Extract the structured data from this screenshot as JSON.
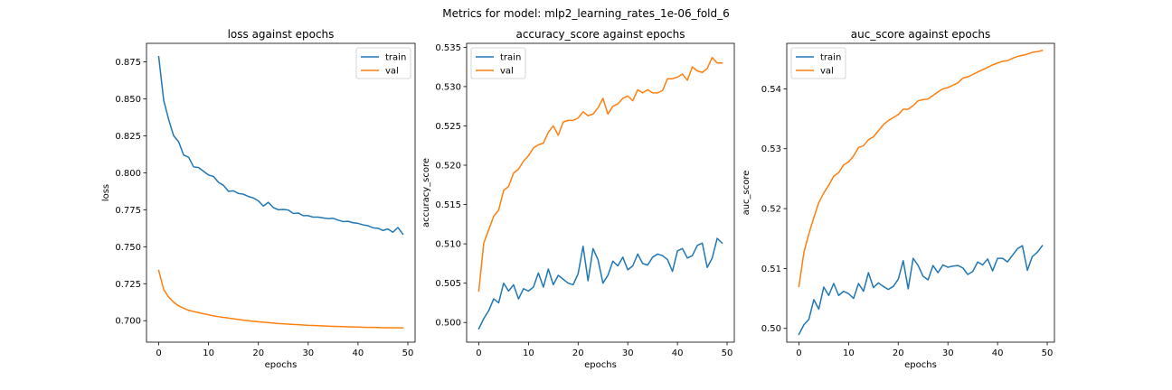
{
  "figure": {
    "suptitle": "Metrics for model: mlp2_learning_rates_1e-06_fold_6"
  },
  "colors": {
    "train": "#1f77b4",
    "val": "#ff7f0e",
    "axes": "#000000",
    "background": "#ffffff"
  },
  "chart_data": [
    {
      "type": "line",
      "title": "loss against epochs",
      "xlabel": "epochs",
      "ylabel": "loss",
      "xlim": [
        -2.45,
        51.45
      ],
      "ylim": [
        0.6855,
        0.8875
      ],
      "xticks": [
        0,
        10,
        20,
        30,
        40,
        50
      ],
      "xtick_labels": [
        "0",
        "10",
        "20",
        "30",
        "40",
        "50"
      ],
      "yticks": [
        0.7,
        0.725,
        0.75,
        0.775,
        0.8,
        0.825,
        0.85,
        0.875
      ],
      "ytick_labels": [
        "0.700",
        "0.725",
        "0.750",
        "0.775",
        "0.800",
        "0.825",
        "0.850",
        "0.875"
      ],
      "legend": {
        "position": "top-right",
        "entries": [
          "train",
          "val"
        ]
      },
      "grid": false,
      "x": [
        0,
        1,
        2,
        3,
        4,
        5,
        6,
        7,
        8,
        9,
        10,
        11,
        12,
        13,
        14,
        15,
        16,
        17,
        18,
        19,
        20,
        21,
        22,
        23,
        24,
        25,
        26,
        27,
        28,
        29,
        30,
        31,
        32,
        33,
        34,
        35,
        36,
        37,
        38,
        39,
        40,
        41,
        42,
        43,
        44,
        45,
        46,
        47,
        48,
        49
      ],
      "series": [
        {
          "name": "train",
          "color": "#1f77b4",
          "values": [
            0.8785,
            0.849,
            0.836,
            0.825,
            0.821,
            0.812,
            0.8105,
            0.804,
            0.8035,
            0.801,
            0.7985,
            0.7975,
            0.7935,
            0.7915,
            0.7875,
            0.7878,
            0.786,
            0.7855,
            0.784,
            0.783,
            0.781,
            0.7775,
            0.78,
            0.7765,
            0.775,
            0.7752,
            0.7748,
            0.7725,
            0.7728,
            0.771,
            0.771,
            0.77,
            0.77,
            0.7695,
            0.769,
            0.7692,
            0.768,
            0.767,
            0.7672,
            0.7662,
            0.7658,
            0.7648,
            0.7642,
            0.7628,
            0.7625,
            0.761,
            0.762,
            0.7598,
            0.763,
            0.7585
          ]
        },
        {
          "name": "val",
          "color": "#ff7f0e",
          "values": [
            0.734,
            0.721,
            0.716,
            0.7125,
            0.71,
            0.7085,
            0.707,
            0.7062,
            0.7055,
            0.7047,
            0.704,
            0.7033,
            0.7027,
            0.7022,
            0.7018,
            0.7013,
            0.7008,
            0.7004,
            0.7,
            0.6996,
            0.6993,
            0.699,
            0.6987,
            0.6984,
            0.6981,
            0.6979,
            0.6977,
            0.6975,
            0.6973,
            0.6971,
            0.6969,
            0.6968,
            0.6966,
            0.6965,
            0.6963,
            0.6962,
            0.6961,
            0.696,
            0.6959,
            0.6958,
            0.6957,
            0.6956,
            0.6955,
            0.6955,
            0.6954,
            0.6953,
            0.6953,
            0.6952,
            0.6952,
            0.6951
          ]
        }
      ]
    },
    {
      "type": "line",
      "title": "accuracy_score against epochs",
      "xlabel": "epochs",
      "ylabel": "accuracy_score",
      "xlim": [
        -2.45,
        51.45
      ],
      "ylim": [
        0.4975,
        0.5355
      ],
      "xticks": [
        0,
        10,
        20,
        30,
        40,
        50
      ],
      "xtick_labels": [
        "0",
        "10",
        "20",
        "30",
        "40",
        "50"
      ],
      "yticks": [
        0.5,
        0.505,
        0.51,
        0.515,
        0.52,
        0.525,
        0.53,
        0.535
      ],
      "ytick_labels": [
        "0.500",
        "0.505",
        "0.510",
        "0.515",
        "0.520",
        "0.525",
        "0.530",
        "0.535"
      ],
      "legend": {
        "position": "top-left",
        "entries": [
          "train",
          "val"
        ]
      },
      "grid": false,
      "x": [
        0,
        1,
        2,
        3,
        4,
        5,
        6,
        7,
        8,
        9,
        10,
        11,
        12,
        13,
        14,
        15,
        16,
        17,
        18,
        19,
        20,
        21,
        22,
        23,
        24,
        25,
        26,
        27,
        28,
        29,
        30,
        31,
        32,
        33,
        34,
        35,
        36,
        37,
        38,
        39,
        40,
        41,
        42,
        43,
        44,
        45,
        46,
        47,
        48,
        49
      ],
      "series": [
        {
          "name": "train",
          "color": "#1f77b4",
          "values": [
            0.4992,
            0.5005,
            0.5015,
            0.503,
            0.5025,
            0.505,
            0.504,
            0.5048,
            0.503,
            0.5043,
            0.504,
            0.5045,
            0.5063,
            0.5045,
            0.5068,
            0.5048,
            0.506,
            0.5055,
            0.505,
            0.5048,
            0.5062,
            0.5097,
            0.5053,
            0.5094,
            0.508,
            0.505,
            0.506,
            0.5078,
            0.5072,
            0.5083,
            0.5067,
            0.5072,
            0.5087,
            0.5075,
            0.5073,
            0.5083,
            0.5087,
            0.5085,
            0.508,
            0.5065,
            0.5091,
            0.5094,
            0.5082,
            0.5085,
            0.5098,
            0.5101,
            0.507,
            0.5082,
            0.5107,
            0.5101
          ]
        },
        {
          "name": "val",
          "color": "#ff7f0e",
          "values": [
            0.504,
            0.5101,
            0.5118,
            0.5135,
            0.5143,
            0.5168,
            0.5173,
            0.519,
            0.5195,
            0.5205,
            0.5212,
            0.5222,
            0.5226,
            0.5228,
            0.5242,
            0.525,
            0.5238,
            0.5255,
            0.5257,
            0.5257,
            0.526,
            0.5268,
            0.5263,
            0.5265,
            0.5273,
            0.5285,
            0.5265,
            0.5275,
            0.5278,
            0.5285,
            0.5288,
            0.5282,
            0.5296,
            0.5292,
            0.5296,
            0.5292,
            0.5292,
            0.5295,
            0.531,
            0.531,
            0.5312,
            0.5316,
            0.5308,
            0.5325,
            0.532,
            0.5318,
            0.5323,
            0.5337,
            0.533,
            0.533
          ]
        }
      ]
    },
    {
      "type": "line",
      "title": "auc_score against epochs",
      "xlabel": "epochs",
      "ylabel": "auc_score",
      "xlim": [
        -2.45,
        51.45
      ],
      "ylim": [
        0.4977,
        0.5476
      ],
      "xticks": [
        0,
        10,
        20,
        30,
        40,
        50
      ],
      "xtick_labels": [
        "0",
        "10",
        "20",
        "30",
        "40",
        "50"
      ],
      "yticks": [
        0.5,
        0.51,
        0.52,
        0.53,
        0.54
      ],
      "ytick_labels": [
        "0.50",
        "0.51",
        "0.52",
        "0.53",
        "0.54"
      ],
      "legend": {
        "position": "top-left",
        "entries": [
          "train",
          "val"
        ]
      },
      "grid": false,
      "x": [
        0,
        1,
        2,
        3,
        4,
        5,
        6,
        7,
        8,
        9,
        10,
        11,
        12,
        13,
        14,
        15,
        16,
        17,
        18,
        19,
        20,
        21,
        22,
        23,
        24,
        25,
        26,
        27,
        28,
        29,
        30,
        31,
        32,
        33,
        34,
        35,
        36,
        37,
        38,
        39,
        40,
        41,
        42,
        43,
        44,
        45,
        46,
        47,
        48,
        49
      ],
      "series": [
        {
          "name": "train",
          "color": "#1f77b4",
          "values": [
            0.499,
            0.5006,
            0.5015,
            0.5048,
            0.5032,
            0.5069,
            0.5055,
            0.5075,
            0.5055,
            0.5062,
            0.5058,
            0.505,
            0.5075,
            0.5062,
            0.5093,
            0.5068,
            0.5076,
            0.507,
            0.5065,
            0.507,
            0.5082,
            0.5113,
            0.5066,
            0.5117,
            0.5105,
            0.5087,
            0.5081,
            0.5105,
            0.5093,
            0.5106,
            0.5102,
            0.5104,
            0.5105,
            0.5101,
            0.509,
            0.5095,
            0.5111,
            0.5106,
            0.5116,
            0.5096,
            0.5117,
            0.5117,
            0.5111,
            0.5122,
            0.5133,
            0.5138,
            0.5097,
            0.512,
            0.5127,
            0.5138
          ]
        },
        {
          "name": "val",
          "color": "#ff7f0e",
          "values": [
            0.507,
            0.5127,
            0.5158,
            0.5185,
            0.521,
            0.5226,
            0.5239,
            0.5254,
            0.526,
            0.5273,
            0.5278,
            0.5288,
            0.5302,
            0.5305,
            0.5315,
            0.532,
            0.533,
            0.534,
            0.5347,
            0.5352,
            0.5357,
            0.5366,
            0.5366,
            0.5372,
            0.538,
            0.5382,
            0.5383,
            0.5389,
            0.5395,
            0.54,
            0.5402,
            0.5406,
            0.541,
            0.5418,
            0.542,
            0.5424,
            0.5428,
            0.5432,
            0.5436,
            0.544,
            0.5443,
            0.5446,
            0.5447,
            0.5451,
            0.5454,
            0.5456,
            0.5458,
            0.5461,
            0.5462,
            0.5464
          ]
        }
      ]
    }
  ]
}
